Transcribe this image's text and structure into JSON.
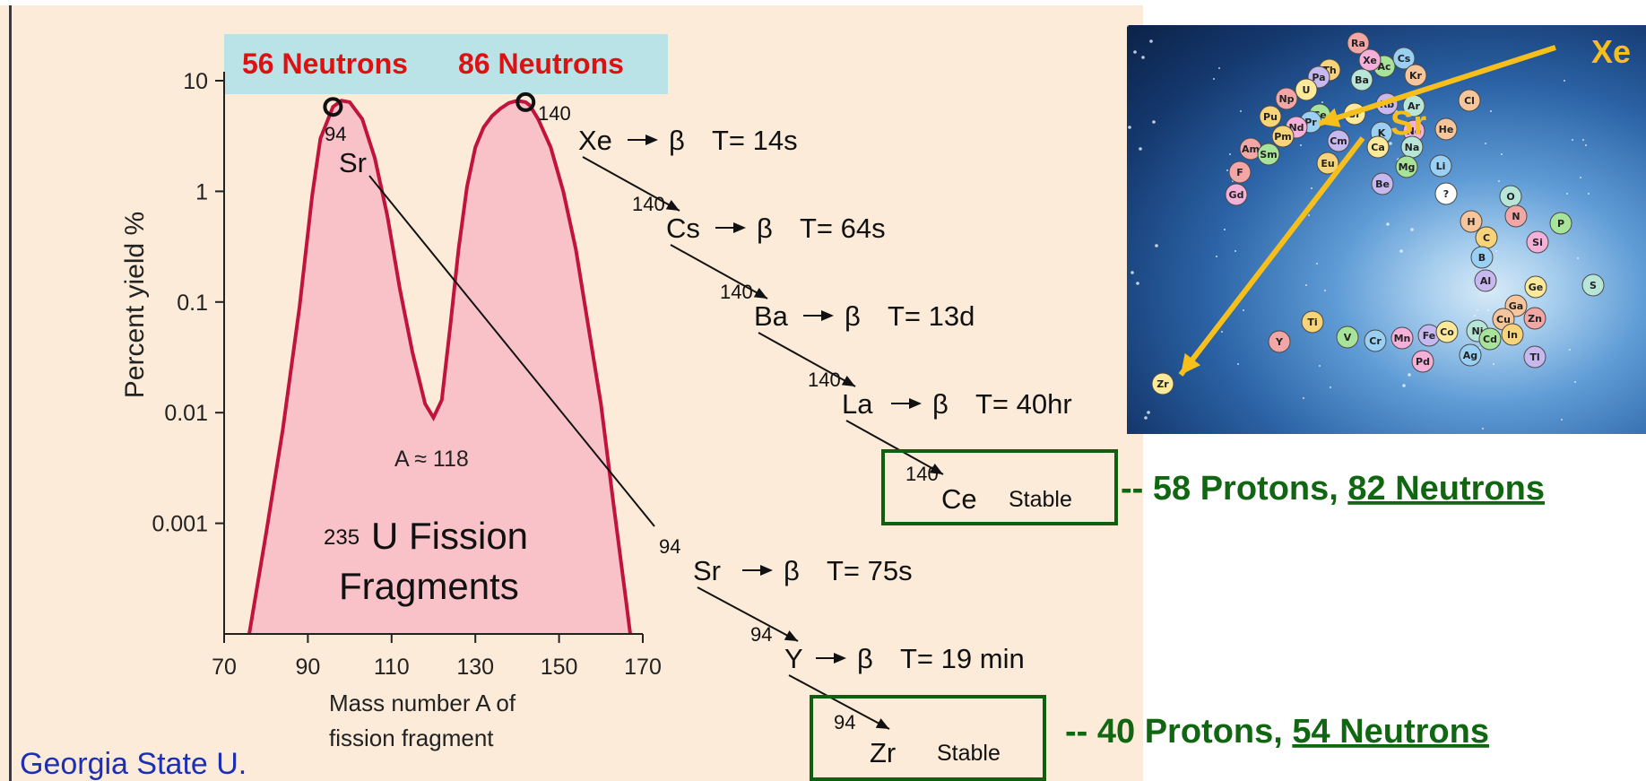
{
  "chart_data": {
    "type": "line",
    "title": "235U Fission Fragments",
    "xlabel": "Mass number A of fission fragment",
    "ylabel": "Percent yield %",
    "xlim": [
      70,
      170
    ],
    "ylim": [
      0.0001,
      10
    ],
    "y_scale": "log",
    "x_ticks": [
      "70",
      "90",
      "110",
      "130",
      "150",
      "170"
    ],
    "y_ticks": [
      "10",
      "1",
      "0.1",
      "0.01",
      "0.001"
    ],
    "series": [
      {
        "x": [
          76,
          80,
          84,
          88,
          91,
          93,
          96,
          98,
          100,
          103,
          106,
          109,
          112,
          115,
          118,
          120,
          122,
          124,
          126,
          128,
          130,
          132,
          134,
          136,
          138,
          140,
          142,
          143,
          145,
          148,
          151,
          154,
          157,
          160,
          163,
          166,
          167
        ],
        "y": [
          0.0001,
          0.0008,
          0.007,
          0.09,
          0.9,
          3,
          5.8,
          6.6,
          6.4,
          4.5,
          2,
          0.6,
          0.13,
          0.035,
          0.012,
          0.009,
          0.013,
          0.06,
          0.3,
          1.1,
          2.5,
          3.8,
          4.8,
          5.6,
          6.3,
          6.6,
          6.4,
          6,
          4.5,
          2.5,
          1,
          0.3,
          0.06,
          0.012,
          0.0015,
          0.0002,
          0.0001
        ]
      }
    ],
    "annotations": {
      "min_label": "A ≈ 118",
      "peak1_mass": "94",
      "peak1_element": "Sr",
      "peak2_mass": "140"
    }
  },
  "header": {
    "neutrons_left": "56 Neutrons",
    "neutrons_right": "86 Neutrons"
  },
  "fragment_label": {
    "sup": "235",
    "line1": "U Fission",
    "line2": "Fragments"
  },
  "xe_chain": [
    {
      "mass": "",
      "element": "Xe",
      "beta": "β",
      "halflife": "T= 14s"
    },
    {
      "mass": "140",
      "element": "Cs",
      "beta": "β",
      "halflife": "T= 64s"
    },
    {
      "mass": "140",
      "element": "Ba",
      "beta": "β",
      "halflife": "T= 13d"
    },
    {
      "mass": "140",
      "element": "La",
      "beta": "β",
      "halflife": "T= 40hr"
    }
  ],
  "xe_stable": {
    "mass": "140",
    "element": "Ce",
    "status": "Stable",
    "note_prefix": "-- 58 Protons, ",
    "note_underlined": "82 Neutrons"
  },
  "sr_chain": [
    {
      "mass": "94",
      "element": "Sr",
      "beta": "β",
      "halflife": "T= 75s"
    },
    {
      "mass": "94",
      "element": "Y",
      "beta": "β",
      "halflife": "T= 19 min"
    }
  ],
  "sr_stable": {
    "mass": "94",
    "element": "Zr",
    "status": "Stable",
    "note_prefix": "-- 40 Protons, ",
    "note_underlined": "54 Neutrons"
  },
  "credit": "Georgia State U.",
  "photo": {
    "label_xe": "Xe",
    "label_sr": "Sr",
    "elements": [
      "Ra",
      "Th",
      "Ac",
      "Cs",
      "Xe",
      "Pa",
      "U",
      "Ba",
      "Kr",
      "Np",
      "Pu",
      "Ce",
      "Pr",
      "Nd",
      "Rb",
      "Sr",
      "Ar",
      "Cl",
      "Am",
      "Pm",
      "Sm",
      "K",
      "Ne",
      "Cm",
      "Ca",
      "Na",
      "He",
      "F",
      "Eu",
      "Mg",
      "Li",
      "Gd",
      "Be",
      "?",
      "O",
      "H",
      "N",
      "C",
      "P",
      "B",
      "Si",
      "Al",
      "Ge",
      "S",
      "Ga",
      "Y",
      "Ti",
      "V",
      "Cr",
      "Mn",
      "Fe",
      "Co",
      "Ni",
      "Cu",
      "Zn",
      "In",
      "Cd",
      "Ag",
      "Pd",
      "Tl",
      "Zr"
    ],
    "colors": {
      "arrow": "#f6bf1c",
      "label": "#f6bf1c"
    }
  }
}
